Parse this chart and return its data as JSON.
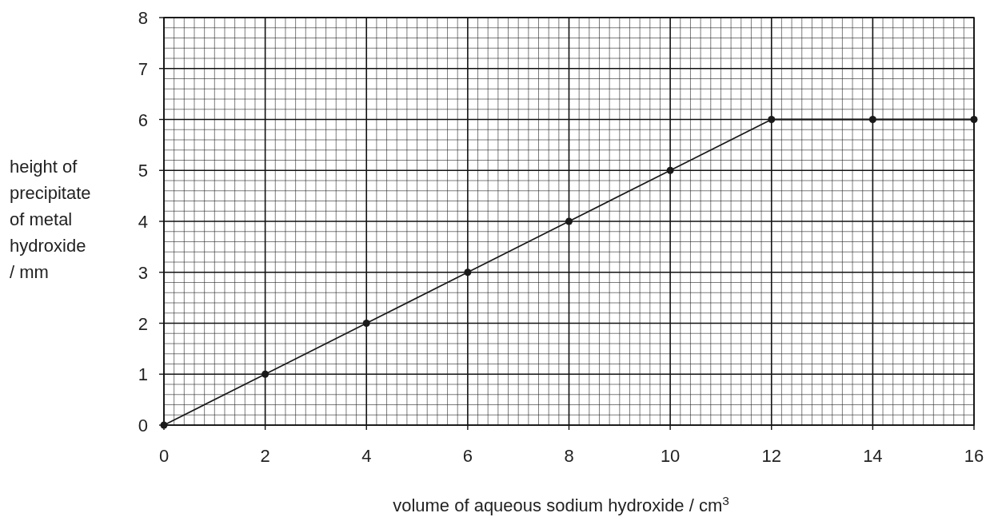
{
  "chart_data": {
    "type": "line",
    "xlabel": "volume of aqueous sodium hydroxide / cm$^{3}$",
    "ylabel": "height of precipitate of metal hydroxide / mm",
    "x": [
      0,
      2,
      4,
      6,
      8,
      10,
      12,
      14,
      16
    ],
    "series": [
      {
        "color": "#1a1a1a",
        "values": [
          0,
          1,
          2,
          3,
          4,
          5,
          6,
          6,
          6
        ]
      }
    ],
    "xlim": [
      0,
      16
    ],
    "ylim": [
      0,
      8
    ],
    "xticks": [
      0,
      2,
      4,
      6,
      8,
      10,
      12,
      14,
      16
    ],
    "yticks": [
      0,
      1,
      2,
      3,
      4,
      5,
      6,
      7,
      8
    ],
    "grid": true,
    "marker": "circle",
    "line_style": "solid"
  }
}
